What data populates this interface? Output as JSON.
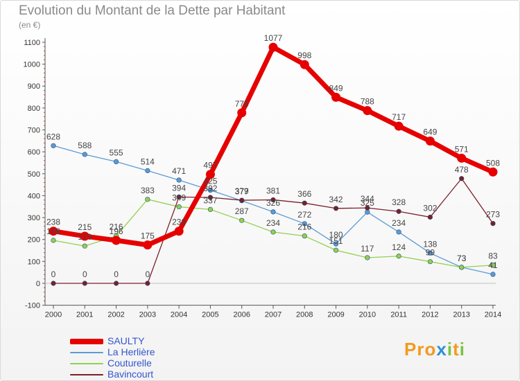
{
  "header": {
    "title": "Evolution du Montant de la Dette par Habitant",
    "unit": "(en €)"
  },
  "logo_text": "Proxiti",
  "chart_data": {
    "type": "line",
    "title": "Evolution du Montant de la Dette par Habitant",
    "ylabel": "(en €)",
    "xlabel": "",
    "x": [
      "2000",
      "2001",
      "2002",
      "2003",
      "2004",
      "2005",
      "2006",
      "2007",
      "2008",
      "2009",
      "2010",
      "2011",
      "2012",
      "2013",
      "2014"
    ],
    "ylim": [
      -100,
      1100
    ],
    "yticks": [
      -100,
      0,
      100,
      200,
      300,
      400,
      500,
      600,
      700,
      800,
      900,
      1000,
      1100
    ],
    "grid": false,
    "legend": "bottom-left",
    "series": [
      {
        "name": "SAULTY",
        "color": "#e60000",
        "values": [
          238,
          215,
          196,
          175,
          238,
          497,
          778,
          1077,
          998,
          849,
          788,
          717,
          649,
          571,
          508
        ]
      },
      {
        "name": "La Herlière",
        "color": "#5b9bd5",
        "values": [
          628,
          588,
          555,
          514,
          471,
          425,
          377,
          326,
          272,
          180,
          325,
          234,
          138,
          73,
          41
        ]
      },
      {
        "name": "Couturelle",
        "color": "#92d050",
        "values": [
          196,
          170,
          216,
          383,
          349,
          337,
          287,
          234,
          216,
          151,
          117,
          124,
          99,
          73,
          83
        ]
      },
      {
        "name": "Bavincourt",
        "color": "#7b1f2a",
        "values": [
          0,
          0,
          0,
          0,
          394,
          392,
          379,
          381,
          366,
          342,
          344,
          328,
          302,
          478,
          273
        ]
      }
    ]
  }
}
